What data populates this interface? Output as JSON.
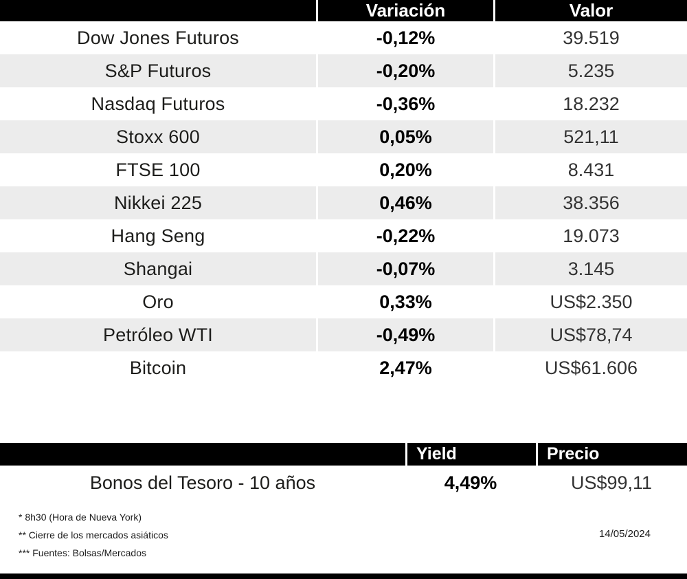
{
  "markets_table": {
    "col_headers": {
      "variation": "Variación",
      "value": "Valor"
    },
    "rows": [
      {
        "name": "Dow Jones Futuros",
        "variation": "-0,12%",
        "value": "39.519"
      },
      {
        "name": "S&P Futuros",
        "variation": "-0,20%",
        "value": "5.235"
      },
      {
        "name": "Nasdaq Futuros",
        "variation": "-0,36%",
        "value": "18.232"
      },
      {
        "name": "Stoxx 600",
        "variation": "0,05%",
        "value": "521,11"
      },
      {
        "name": "FTSE 100",
        "variation": "0,20%",
        "value": "8.431"
      },
      {
        "name": "Nikkei 225",
        "variation": "0,46%",
        "value": "38.356"
      },
      {
        "name": "Hang Seng",
        "variation": "-0,22%",
        "value": "19.073"
      },
      {
        "name": "Shangai",
        "variation": "-0,07%",
        "value": "3.145"
      },
      {
        "name": "Oro",
        "variation": "0,33%",
        "value": "US$2.350"
      },
      {
        "name": "Petróleo WTI",
        "variation": "-0,49%",
        "value": "US$78,74"
      },
      {
        "name": "Bitcoin",
        "variation": "2,47%",
        "value": "US$61.606"
      }
    ]
  },
  "bonds_table": {
    "col_headers": {
      "yield": "Yield",
      "price": "Precio"
    },
    "rows": [
      {
        "name": "Bonos del Tesoro - 10 años",
        "yield": "4,49%",
        "price": "US$99,11"
      }
    ]
  },
  "footnotes": {
    "line1": "* 8h30  (Hora de Nueva York)",
    "line2": "** Cierre de los mercados asiáticos",
    "line3": "*** Fuentes: Bolsas/Mercados"
  },
  "date": "14/05/2024",
  "colors": {
    "header_bg": "#000000",
    "header_text": "#ffffff",
    "row_alt_bg": "#ececec",
    "variation_text": "#000000",
    "name_text": "#1d1d1b"
  },
  "chart_data": {
    "type": "table",
    "tables": [
      {
        "title": "Mercados",
        "columns": [
          "",
          "Variación",
          "Valor"
        ],
        "rows": [
          [
            "Dow Jones Futuros",
            "-0,12%",
            "39.519"
          ],
          [
            "S&P Futuros",
            "-0,20%",
            "5.235"
          ],
          [
            "Nasdaq Futuros",
            "-0,36%",
            "18.232"
          ],
          [
            "Stoxx 600",
            "0,05%",
            "521,11"
          ],
          [
            "FTSE 100",
            "0,20%",
            "8.431"
          ],
          [
            "Nikkei 225",
            "0,46%",
            "38.356"
          ],
          [
            "Hang Seng",
            "-0,22%",
            "19.073"
          ],
          [
            "Shangai",
            "-0,07%",
            "3.145"
          ],
          [
            "Oro",
            "0,33%",
            "US$2.350"
          ],
          [
            "Petróleo WTI",
            "-0,49%",
            "US$78,74"
          ],
          [
            "Bitcoin",
            "2,47%",
            "US$61.606"
          ]
        ]
      },
      {
        "title": "Bonos",
        "columns": [
          "",
          "Yield",
          "Precio"
        ],
        "rows": [
          [
            "Bonos del Tesoro - 10 años",
            "4,49%",
            "US$99,11"
          ]
        ]
      }
    ]
  }
}
